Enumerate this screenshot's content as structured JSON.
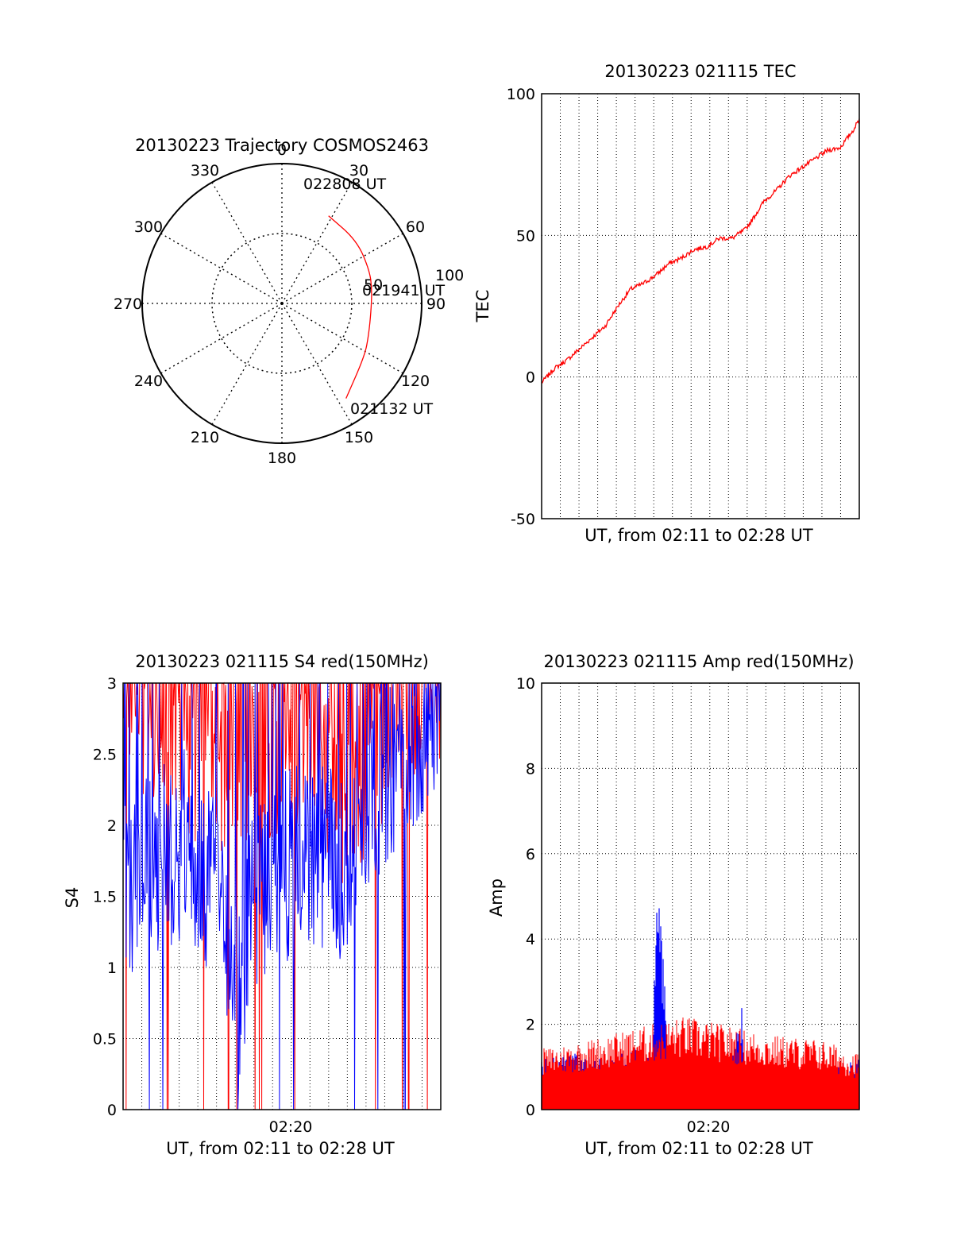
{
  "chart_data": [
    {
      "type": "polar",
      "title": "20130223 Trajectory COSMOS2463",
      "azimuth_labels": [
        "0",
        "30",
        "60",
        "90",
        "120",
        "150",
        "180",
        "210",
        "240",
        "270",
        "300",
        "330"
      ],
      "radial_labels": [
        "50",
        "100"
      ],
      "elevation_range": [
        0,
        100
      ],
      "trajectory": {
        "color": "#ff0000",
        "points": [
          [
            28,
            71
          ],
          [
            50,
            70
          ],
          [
            70,
            67
          ],
          [
            82,
            65
          ],
          [
            95,
            64
          ],
          [
            110,
            66
          ],
          [
            122,
            70
          ],
          [
            146,
            82
          ]
        ],
        "annotations": [
          {
            "text": "022808 UT",
            "at": "end"
          },
          {
            "text": "021941 UT",
            "at": "middle"
          },
          {
            "text": "021132 UT",
            "at": "start"
          }
        ]
      }
    },
    {
      "type": "line",
      "title": "20130223 021115 TEC",
      "xlabel": "UT, from 02:11 to 02:28 UT",
      "ylabel": "TEC",
      "ylim": [
        -50,
        100
      ],
      "yticks": [
        "-50",
        "0",
        "50",
        "100"
      ],
      "grid": true,
      "series": [
        {
          "color": "#ff0000",
          "x": [
            0,
            0.04,
            0.08,
            0.12,
            0.16,
            0.2,
            0.24,
            0.28,
            0.32,
            0.36,
            0.4,
            0.44,
            0.48,
            0.52,
            0.56,
            0.6,
            0.64,
            0.66,
            0.7,
            0.74,
            0.78,
            0.82,
            0.86,
            0.9,
            0.94,
            0.98,
            1.0
          ],
          "y": [
            -2,
            3,
            6,
            10,
            14,
            18,
            25,
            31,
            33,
            36,
            40,
            42,
            45,
            46,
            49,
            49,
            52,
            55,
            62,
            66,
            71,
            74,
            77,
            80,
            81,
            87,
            91
          ]
        }
      ]
    },
    {
      "type": "line",
      "title": "20130223 021115 S4 red(150MHz)",
      "xlabel": "UT, from 02:11 to 02:28 UT",
      "ylabel": "S4",
      "ylim": [
        0,
        3
      ],
      "yticks": [
        "0",
        "0.5",
        "1",
        "1.5",
        "2",
        "2.5",
        "3"
      ],
      "xticks": [
        "02:20"
      ],
      "grid": true,
      "series": [
        {
          "color": "#ff0000",
          "x": [
            0,
            0.1,
            0.2,
            0.3,
            0.4,
            0.5,
            0.6,
            0.7,
            0.8,
            0.9,
            1.0
          ],
          "y": [
            3.0,
            2.8,
            2.6,
            2.4,
            2.5,
            2.6,
            2.7,
            2.2,
            2.6,
            2.8,
            2.9
          ]
        },
        {
          "color": "#0000ff",
          "x": [
            0,
            0.1,
            0.2,
            0.3,
            0.35,
            0.37,
            0.4,
            0.5,
            0.6,
            0.7,
            0.8,
            0.9,
            1.0
          ],
          "y": [
            1.6,
            1.7,
            1.9,
            1.5,
            1.1,
            0.65,
            1.4,
            1.7,
            1.8,
            1.7,
            2.3,
            2.6,
            2.9
          ]
        }
      ]
    },
    {
      "type": "line",
      "title": "20130223 021115 Amp red(150MHz)",
      "xlabel": "UT, from 02:11 to 02:28 UT",
      "ylabel": "Amp",
      "ylim": [
        0,
        10
      ],
      "yticks": [
        "0",
        "2",
        "4",
        "6",
        "8",
        "10"
      ],
      "xticks": [
        "02:20"
      ],
      "grid": true,
      "series": [
        {
          "color": "#0000ff",
          "x": [
            0,
            0.1,
            0.2,
            0.3,
            0.35,
            0.36,
            0.37,
            0.4,
            0.5,
            0.6,
            0.63,
            0.64,
            0.7,
            0.8,
            0.9,
            1.0
          ],
          "y": [
            1.1,
            1.2,
            1.1,
            1.3,
            1.2,
            4.5,
            5.2,
            1.1,
            1.2,
            1.1,
            2.3,
            1.1,
            1.0,
            1.0,
            0.9,
            1.1
          ]
        },
        {
          "color": "#ff0000",
          "x": [
            0,
            0.15,
            0.45,
            0.72,
            0.88,
            1.0
          ],
          "y": [
            1.3,
            1.5,
            2.0,
            1.6,
            1.5,
            1.2
          ]
        }
      ]
    }
  ]
}
